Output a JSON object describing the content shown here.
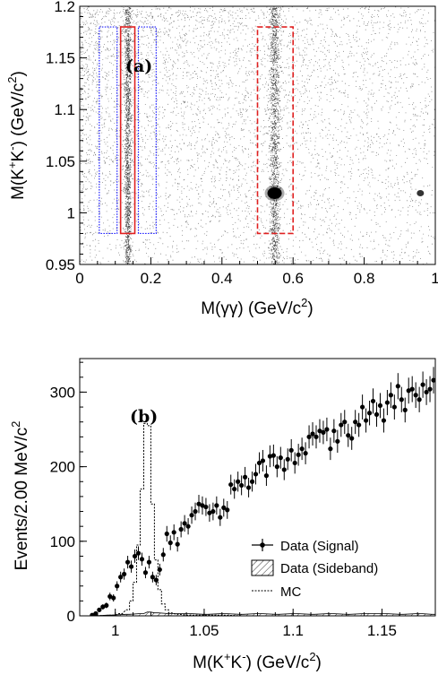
{
  "chart_data": [
    {
      "type": "scatter",
      "panel_label": "(a)",
      "xlabel_main": "M(γγ) (GeV/c",
      "xlabel_sup": "2",
      "xlabel_end": ")",
      "ylabel_pre": "M(K",
      "ylabel_sup1": "+",
      "ylabel_mid": "K",
      "ylabel_sup2": "-",
      "ylabel_post": ") (GeV/c",
      "ylabel_sup3": "2",
      "ylabel_end": ")",
      "xlim": [
        0,
        1
      ],
      "ylim": [
        0.95,
        1.2
      ],
      "xticks": [
        0,
        0.2,
        0.4,
        0.6,
        0.8,
        1
      ],
      "xtick_labels": [
        "0",
        "0.2",
        "0.4",
        "0.6",
        "0.8",
        "1"
      ],
      "yticks": [
        0.95,
        1,
        1.05,
        1.1,
        1.15,
        1.2
      ],
      "ytick_labels": [
        "0.95",
        "1",
        "1.05",
        "1.1",
        "1.15",
        "1.2"
      ],
      "bands": [
        {
          "name": "pi0-band",
          "x_center": 0.135,
          "width": 0.012
        },
        {
          "name": "eta-band",
          "x_center": 0.548,
          "width": 0.018
        }
      ],
      "clusters": [
        {
          "name": "eta-phi-cluster",
          "x": 0.548,
          "y": 1.019
        },
        {
          "name": "etaprime-phi-cluster",
          "x": 0.958,
          "y": 1.019
        }
      ],
      "boxes": [
        {
          "name": "sideband-left-box",
          "x0": 0.055,
          "x1": 0.105,
          "y0": 0.98,
          "y1": 1.18,
          "color": "#1a1aff",
          "style": "dotted"
        },
        {
          "name": "signal-pi0-box",
          "x0": 0.115,
          "x1": 0.155,
          "y0": 0.98,
          "y1": 1.18,
          "color": "#e02020",
          "style": "solid"
        },
        {
          "name": "sideband-right-box",
          "x0": 0.165,
          "x1": 0.215,
          "y0": 0.98,
          "y1": 1.18,
          "color": "#1a1aff",
          "style": "dotted"
        },
        {
          "name": "signal-eta-box",
          "x0": 0.5,
          "x1": 0.6,
          "y0": 0.98,
          "y1": 1.18,
          "color": "#e02020",
          "style": "dashed"
        }
      ]
    },
    {
      "type": "line",
      "panel_label": "(b)",
      "xlabel_pre": "M(K",
      "xlabel_sup1": "+",
      "xlabel_mid": "K",
      "xlabel_sup2": "-",
      "xlabel_post": ") (GeV/c",
      "xlabel_sup3": "2",
      "xlabel_end": ")",
      "ylabel_main": "Events/2.00 MeV/c",
      "ylabel_sup": "2",
      "xlim": [
        0.98,
        1.18
      ],
      "ylim": [
        0,
        345
      ],
      "xticks": [
        1,
        1.05,
        1.1,
        1.15
      ],
      "xtick_labels": [
        "1",
        "1.05",
        "1.1",
        "1.15"
      ],
      "yticks": [
        0,
        100,
        200,
        300
      ],
      "ytick_labels": [
        "0",
        "100",
        "200",
        "300"
      ],
      "legend": {
        "placement": "bottom-right",
        "entries": [
          "Data (Signal)",
          "Data (Sideband)",
          "MC"
        ]
      },
      "series": [
        {
          "name": "Data (Signal)",
          "style": "points-with-errors",
          "x": [
            0.987,
            0.989,
            0.991,
            0.993,
            0.995,
            0.997,
            0.999,
            1.001,
            1.003,
            1.005,
            1.007,
            1.009,
            1.011,
            1.013,
            1.015,
            1.017,
            1.019,
            1.021,
            1.023,
            1.025,
            1.027,
            1.029,
            1.031,
            1.033,
            1.035,
            1.037,
            1.039,
            1.041,
            1.043,
            1.045,
            1.047,
            1.049,
            1.051,
            1.053,
            1.055,
            1.057,
            1.059,
            1.061,
            1.063,
            1.065,
            1.067,
            1.069,
            1.071,
            1.073,
            1.075,
            1.077,
            1.079,
            1.081,
            1.083,
            1.085,
            1.087,
            1.089,
            1.091,
            1.093,
            1.095,
            1.097,
            1.099,
            1.101,
            1.103,
            1.105,
            1.107,
            1.109,
            1.111,
            1.113,
            1.115,
            1.117,
            1.119,
            1.121,
            1.123,
            1.125,
            1.127,
            1.129,
            1.131,
            1.133,
            1.135,
            1.137,
            1.139,
            1.141,
            1.143,
            1.145,
            1.147,
            1.149,
            1.151,
            1.153,
            1.155,
            1.157,
            1.159,
            1.161,
            1.163,
            1.165,
            1.167,
            1.169,
            1.171,
            1.173,
            1.175,
            1.177,
            1.179
          ],
          "values": [
            1,
            3,
            8,
            12,
            14,
            26,
            24,
            40,
            52,
            56,
            72,
            66,
            80,
            84,
            76,
            58,
            72,
            52,
            48,
            62,
            82,
            110,
            98,
            112,
            96,
            116,
            124,
            120,
            135,
            140,
            150,
            148,
            146,
            138,
            140,
            148,
            132,
            145,
            142,
            176,
            170,
            180,
            175,
            186,
            172,
            180,
            190,
            205,
            208,
            188,
            214,
            215,
            200,
            212,
            196,
            210,
            222,
            205,
            216,
            224,
            218,
            240,
            244,
            240,
            248,
            246,
            250,
            224,
            248,
            234,
            256,
            260,
            242,
            238,
            260,
            256,
            280,
            262,
            272,
            288,
            270,
            282,
            262,
            286,
            296,
            280,
            308,
            290,
            276,
            302,
            304,
            296,
            290,
            310,
            300,
            304,
            316
          ]
        },
        {
          "name": "Data (Sideband)",
          "style": "hatched-histogram",
          "x": [
            0.987,
            0.997,
            1.007,
            1.015,
            1.019,
            1.023,
            1.031,
            1.041,
            1.051,
            1.061,
            1.071,
            1.081,
            1.091,
            1.101,
            1.111,
            1.121,
            1.131,
            1.141,
            1.151,
            1.161,
            1.171,
            1.179
          ],
          "values": [
            0,
            1,
            2,
            3,
            5,
            4,
            3,
            3,
            2,
            3,
            2,
            3,
            2,
            3,
            2,
            3,
            2,
            3,
            3,
            2,
            3,
            2
          ]
        },
        {
          "name": "MC",
          "style": "dotted-histogram",
          "x": [
            0.987,
            0.999,
            1.003,
            1.007,
            1.009,
            1.011,
            1.013,
            1.015,
            1.017,
            1.019,
            1.021,
            1.023,
            1.025,
            1.027,
            1.029,
            1.031,
            1.035,
            1.041,
            1.051,
            1.061,
            1.071,
            1.081,
            1.091,
            1.101,
            1.111,
            1.121,
            1.131,
            1.141,
            1.151,
            1.161,
            1.171,
            1.179
          ],
          "values": [
            0,
            1,
            3,
            8,
            20,
            45,
            95,
            170,
            258,
            255,
            150,
            75,
            35,
            16,
            8,
            4,
            2,
            1,
            1,
            1,
            0,
            0,
            0,
            0,
            0,
            0,
            0,
            0,
            0,
            0,
            0,
            0
          ]
        }
      ]
    }
  ]
}
